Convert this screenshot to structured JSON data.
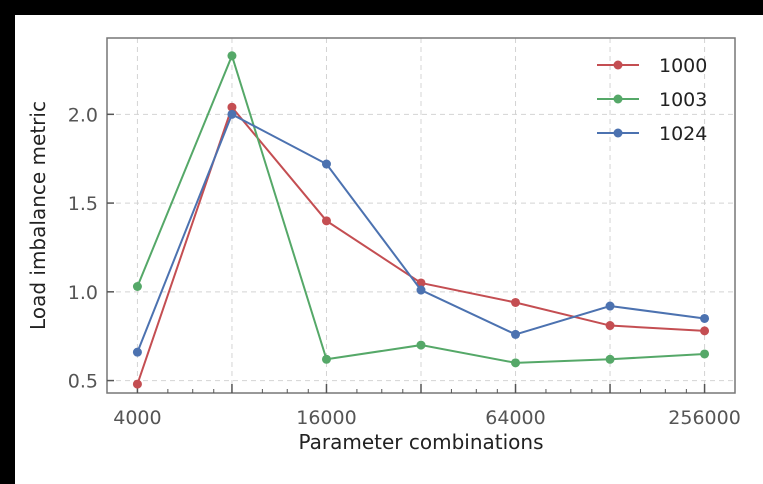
{
  "chart_data": {
    "type": "line",
    "title": "",
    "xlabel": "Parameter combinations",
    "ylabel": "Load imbalance metric",
    "x_scale": "log2",
    "x": [
      4000,
      8000,
      16000,
      32000,
      64000,
      128000,
      256000
    ],
    "x_tick_labels": [
      "4000",
      "16000",
      "64000",
      "256000"
    ],
    "x_tick_values": [
      4000,
      16000,
      64000,
      256000
    ],
    "y_tick_labels": [
      "0.5",
      "1.0",
      "1.5",
      "2.0"
    ],
    "y_tick_values": [
      0.5,
      1.0,
      1.5,
      2.0
    ],
    "xlim": [
      3200,
      320000
    ],
    "ylim": [
      0.43,
      2.43
    ],
    "grid": true,
    "legend_position": "top-right",
    "series": [
      {
        "name": "1000",
        "color": "#c44e52",
        "values": [
          0.48,
          2.04,
          1.4,
          1.05,
          0.94,
          0.81,
          0.78
        ]
      },
      {
        "name": "1003",
        "color": "#55a868",
        "values": [
          1.03,
          2.33,
          0.62,
          0.7,
          0.6,
          0.62,
          0.65
        ]
      },
      {
        "name": "1024",
        "color": "#4c72b0",
        "values": [
          0.66,
          2.0,
          1.72,
          1.01,
          0.76,
          0.92,
          0.85
        ]
      }
    ]
  }
}
